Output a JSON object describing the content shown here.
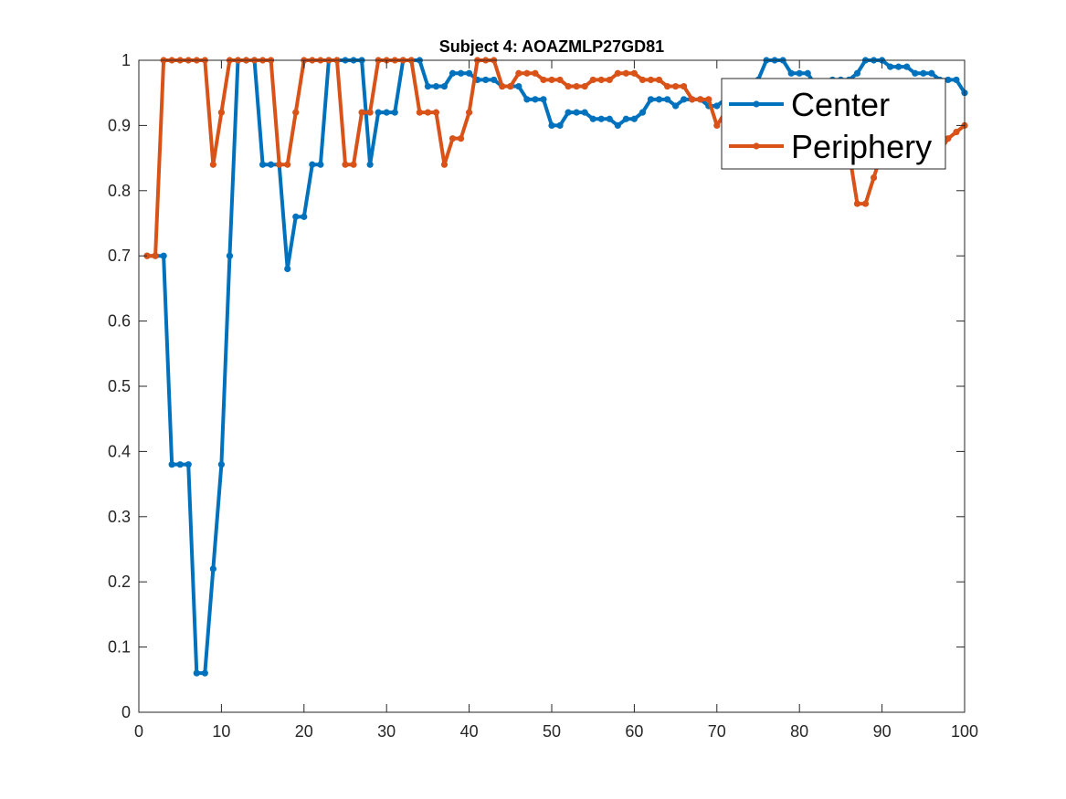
{
  "chart_data": {
    "type": "line",
    "title": "Subject 4: AOAZMLP27GD81",
    "xlabel": "",
    "ylabel": "",
    "xlim": [
      0,
      100
    ],
    "ylim": [
      0,
      1
    ],
    "xticks": [
      0,
      10,
      20,
      30,
      40,
      50,
      60,
      70,
      80,
      90,
      100
    ],
    "yticks": [
      0,
      0.1,
      0.2,
      0.3,
      0.4,
      0.5,
      0.6,
      0.7,
      0.8,
      0.9,
      1
    ],
    "xtick_labels": [
      "0",
      "10",
      "20",
      "30",
      "40",
      "50",
      "60",
      "70",
      "80",
      "90",
      "100"
    ],
    "ytick_labels": [
      "0",
      "0.1",
      "0.2",
      "0.3",
      "0.4",
      "0.5",
      "0.6",
      "0.7",
      "0.8",
      "0.9",
      "1"
    ],
    "grid": false,
    "legend": {
      "position": "top-right",
      "entries": [
        "Center",
        "Periphery"
      ]
    },
    "x": [
      1,
      2,
      3,
      4,
      5,
      6,
      7,
      8,
      9,
      10,
      11,
      12,
      13,
      14,
      15,
      16,
      17,
      18,
      19,
      20,
      21,
      22,
      23,
      24,
      25,
      26,
      27,
      28,
      29,
      30,
      31,
      32,
      33,
      34,
      35,
      36,
      37,
      38,
      39,
      40,
      41,
      42,
      43,
      44,
      45,
      46,
      47,
      48,
      49,
      50,
      51,
      52,
      53,
      54,
      55,
      56,
      57,
      58,
      59,
      60,
      61,
      62,
      63,
      64,
      65,
      66,
      67,
      68,
      69,
      70,
      71,
      72,
      73,
      74,
      75,
      76,
      77,
      78,
      79,
      80,
      81,
      82,
      83,
      84,
      85,
      86,
      87,
      88,
      89,
      90,
      91,
      92,
      93,
      94,
      95,
      96,
      97,
      98,
      99,
      100
    ],
    "series": [
      {
        "name": "Center",
        "color": "#0072BD",
        "values": [
          0.7,
          0.7,
          0.7,
          0.38,
          0.38,
          0.38,
          0.06,
          0.06,
          0.22,
          0.38,
          0.7,
          1.0,
          1.0,
          1.0,
          0.84,
          0.84,
          0.84,
          0.68,
          0.76,
          0.76,
          0.84,
          0.84,
          1.0,
          1.0,
          1.0,
          1.0,
          1.0,
          0.84,
          0.92,
          0.92,
          0.92,
          1.0,
          1.0,
          1.0,
          0.96,
          0.96,
          0.96,
          0.98,
          0.98,
          0.98,
          0.97,
          0.97,
          0.97,
          0.96,
          0.96,
          0.96,
          0.94,
          0.94,
          0.94,
          0.9,
          0.9,
          0.92,
          0.92,
          0.92,
          0.91,
          0.91,
          0.91,
          0.9,
          0.91,
          0.91,
          0.92,
          0.94,
          0.94,
          0.94,
          0.93,
          0.94,
          0.94,
          0.94,
          0.93,
          0.93,
          0.94,
          0.94,
          0.95,
          0.95,
          0.97,
          1.0,
          1.0,
          1.0,
          0.98,
          0.98,
          0.98,
          0.96,
          0.96,
          0.97,
          0.97,
          0.97,
          0.98,
          1.0,
          1.0,
          1.0,
          0.99,
          0.99,
          0.99,
          0.98,
          0.98,
          0.98,
          0.97,
          0.97,
          0.97,
          0.95
        ]
      },
      {
        "name": "Periphery",
        "color": "#D95319",
        "values": [
          0.7,
          0.7,
          1.0,
          1.0,
          1.0,
          1.0,
          1.0,
          1.0,
          0.84,
          0.92,
          1.0,
          1.0,
          1.0,
          1.0,
          1.0,
          1.0,
          0.84,
          0.84,
          0.92,
          1.0,
          1.0,
          1.0,
          1.0,
          1.0,
          0.84,
          0.84,
          0.92,
          0.92,
          1.0,
          1.0,
          1.0,
          1.0,
          1.0,
          0.92,
          0.92,
          0.92,
          0.84,
          0.88,
          0.88,
          0.92,
          1.0,
          1.0,
          1.0,
          0.96,
          0.96,
          0.98,
          0.98,
          0.98,
          0.97,
          0.97,
          0.97,
          0.96,
          0.96,
          0.96,
          0.97,
          0.97,
          0.97,
          0.98,
          0.98,
          0.98,
          0.97,
          0.97,
          0.97,
          0.96,
          0.96,
          0.96,
          0.94,
          0.94,
          0.94,
          0.9,
          0.92,
          0.92,
          0.92,
          0.92,
          0.92,
          0.92,
          0.92,
          0.92,
          0.92,
          0.92,
          0.92,
          0.9,
          0.9,
          0.9,
          0.88,
          0.86,
          0.78,
          0.78,
          0.82,
          0.86,
          0.86,
          0.86,
          0.86,
          0.86,
          0.86,
          0.86,
          0.86,
          0.88,
          0.89,
          0.9
        ]
      }
    ]
  }
}
